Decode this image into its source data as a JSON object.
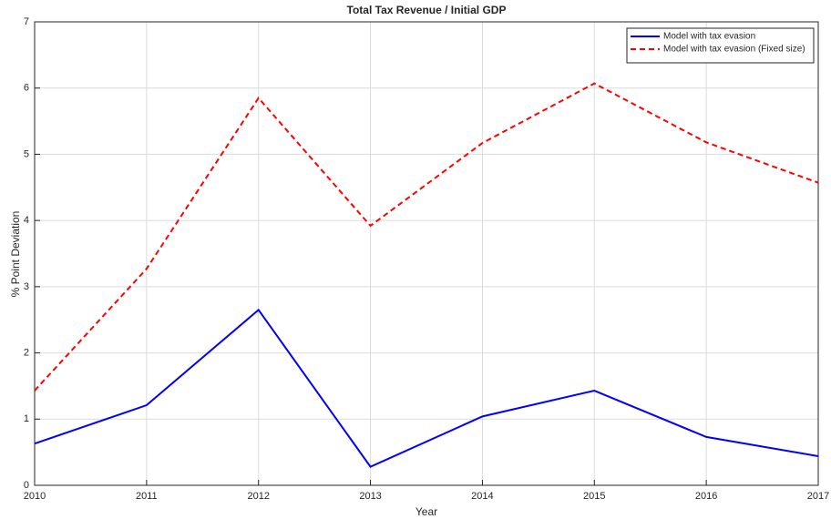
{
  "chart_data": {
    "type": "line",
    "title": "Total Tax Revenue / Initial GDP",
    "x_label": "Year",
    "y_label": "% Point Deviation",
    "x": [
      2010,
      2011,
      2012,
      2013,
      2014,
      2015,
      2016,
      2017
    ],
    "series": [
      {
        "name": "Model with tax evasion",
        "color": "#0000ff",
        "linestyle": "solid",
        "values": [
          0.63,
          1.21,
          2.65,
          0.28,
          1.04,
          1.43,
          0.73,
          0.44
        ]
      },
      {
        "name": "Model with tax evasion (Fixed size)",
        "color": "#ff0000",
        "linestyle": "dashed",
        "values": [
          1.43,
          3.27,
          5.85,
          3.92,
          5.17,
          6.07,
          5.18,
          4.57
        ]
      }
    ],
    "xlim": [
      2010,
      2017
    ],
    "xticks": [
      2010,
      2011,
      2012,
      2013,
      2014,
      2015,
      2016,
      2017
    ],
    "ylim": [
      0,
      7
    ],
    "yticks": [
      0,
      1,
      2,
      3,
      4,
      5,
      6,
      7
    ],
    "grid": true,
    "legend": "northeast"
  }
}
